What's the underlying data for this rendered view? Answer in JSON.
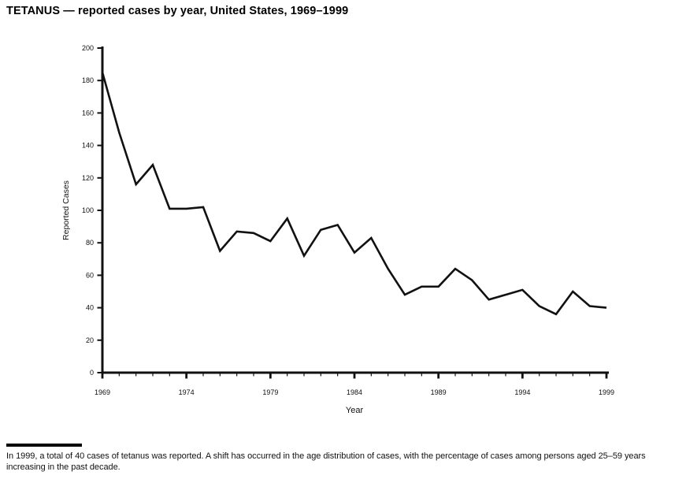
{
  "page": {
    "title": "TETANUS — reported cases by year, United States, 1969–1999",
    "footnote": "In 1999, a total of 40 cases of tetanus was reported. A shift has occurred in the age distribution of cases, with the percentage of cases among persons aged 25–59 years increasing in the past decade."
  },
  "chart_data": {
    "type": "line",
    "title": "TETANUS — reported cases by year, United States, 1969–1999",
    "xlabel": "Year",
    "ylabel": "Reported Cases",
    "x": [
      1969,
      1970,
      1971,
      1972,
      1973,
      1974,
      1975,
      1976,
      1977,
      1978,
      1979,
      1980,
      1981,
      1982,
      1983,
      1984,
      1985,
      1986,
      1987,
      1988,
      1989,
      1990,
      1991,
      1992,
      1993,
      1994,
      1995,
      1996,
      1997,
      1998,
      1999
    ],
    "values": [
      185,
      148,
      116,
      128,
      101,
      101,
      102,
      75,
      87,
      86,
      81,
      95,
      72,
      88,
      91,
      74,
      83,
      64,
      48,
      53,
      53,
      64,
      57,
      45,
      48,
      51,
      41,
      36,
      50,
      41,
      40
    ],
    "xlim": [
      1969,
      1999
    ],
    "ylim": [
      0,
      200
    ],
    "y_ticks": [
      0,
      20,
      40,
      60,
      80,
      100,
      120,
      140,
      160,
      180,
      200
    ],
    "x_major_ticks": [
      1969,
      1974,
      1979,
      1984,
      1989,
      1994,
      1999
    ],
    "x_minor_tick_interval": 1,
    "grid": false,
    "legend": false,
    "line_color": "#111111",
    "axis_color": "#111111"
  }
}
